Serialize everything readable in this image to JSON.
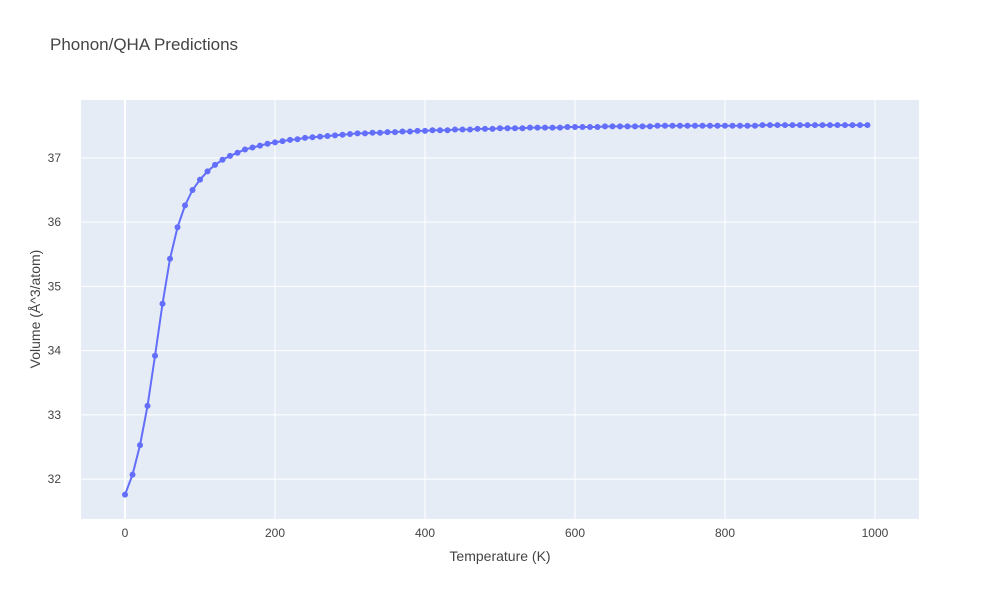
{
  "chart_data": {
    "type": "line",
    "title": "Phonon/QHA Predictions",
    "xlabel": "Temperature (K)",
    "ylabel": "Volume (Å^3/atom)",
    "color": "#636efa",
    "grid": true,
    "xlim": [
      -58.7,
      1058.7
    ],
    "ylim": [
      31.38,
      37.9
    ],
    "xticks": [
      0,
      200,
      400,
      600,
      800,
      1000
    ],
    "yticks": [
      32,
      33,
      34,
      35,
      36,
      37
    ],
    "x": [
      0,
      10,
      20,
      30,
      40,
      50,
      60,
      70,
      80,
      90,
      100,
      110,
      120,
      130,
      140,
      150,
      160,
      170,
      180,
      190,
      200,
      210,
      220,
      230,
      240,
      250,
      260,
      270,
      280,
      290,
      300,
      310,
      320,
      330,
      340,
      350,
      360,
      370,
      380,
      390,
      400,
      410,
      420,
      430,
      440,
      450,
      460,
      470,
      480,
      490,
      500,
      510,
      520,
      530,
      540,
      550,
      560,
      570,
      580,
      590,
      600,
      610,
      620,
      630,
      640,
      650,
      660,
      670,
      680,
      690,
      700,
      710,
      720,
      730,
      740,
      750,
      760,
      770,
      780,
      790,
      800,
      810,
      820,
      830,
      840,
      850,
      860,
      870,
      880,
      890,
      900,
      910,
      920,
      930,
      940,
      950,
      960,
      970,
      980,
      990
    ],
    "values": [
      31.76,
      32.07,
      32.53,
      33.14,
      33.92,
      34.73,
      35.43,
      35.92,
      36.26,
      36.5,
      36.66,
      36.79,
      36.89,
      36.97,
      37.03,
      37.08,
      37.13,
      37.16,
      37.19,
      37.22,
      37.24,
      37.26,
      37.28,
      37.29,
      37.31,
      37.32,
      37.33,
      37.34,
      37.35,
      37.36,
      37.37,
      37.38,
      37.38,
      37.39,
      37.39,
      37.4,
      37.4,
      37.41,
      37.41,
      37.42,
      37.42,
      37.43,
      37.43,
      37.43,
      37.44,
      37.44,
      37.44,
      37.45,
      37.45,
      37.45,
      37.46,
      37.46,
      37.46,
      37.46,
      37.47,
      37.47,
      37.47,
      37.47,
      37.47,
      37.48,
      37.48,
      37.48,
      37.48,
      37.48,
      37.49,
      37.49,
      37.49,
      37.49,
      37.49,
      37.49,
      37.49,
      37.5,
      37.5,
      37.5,
      37.5,
      37.5,
      37.5,
      37.5,
      37.5,
      37.5,
      37.5,
      37.5,
      37.5,
      37.5,
      37.5,
      37.51,
      37.51,
      37.51,
      37.51,
      37.51,
      37.51,
      37.51,
      37.51,
      37.51,
      37.51,
      37.51,
      37.51,
      37.51,
      37.51,
      37.51
    ]
  }
}
